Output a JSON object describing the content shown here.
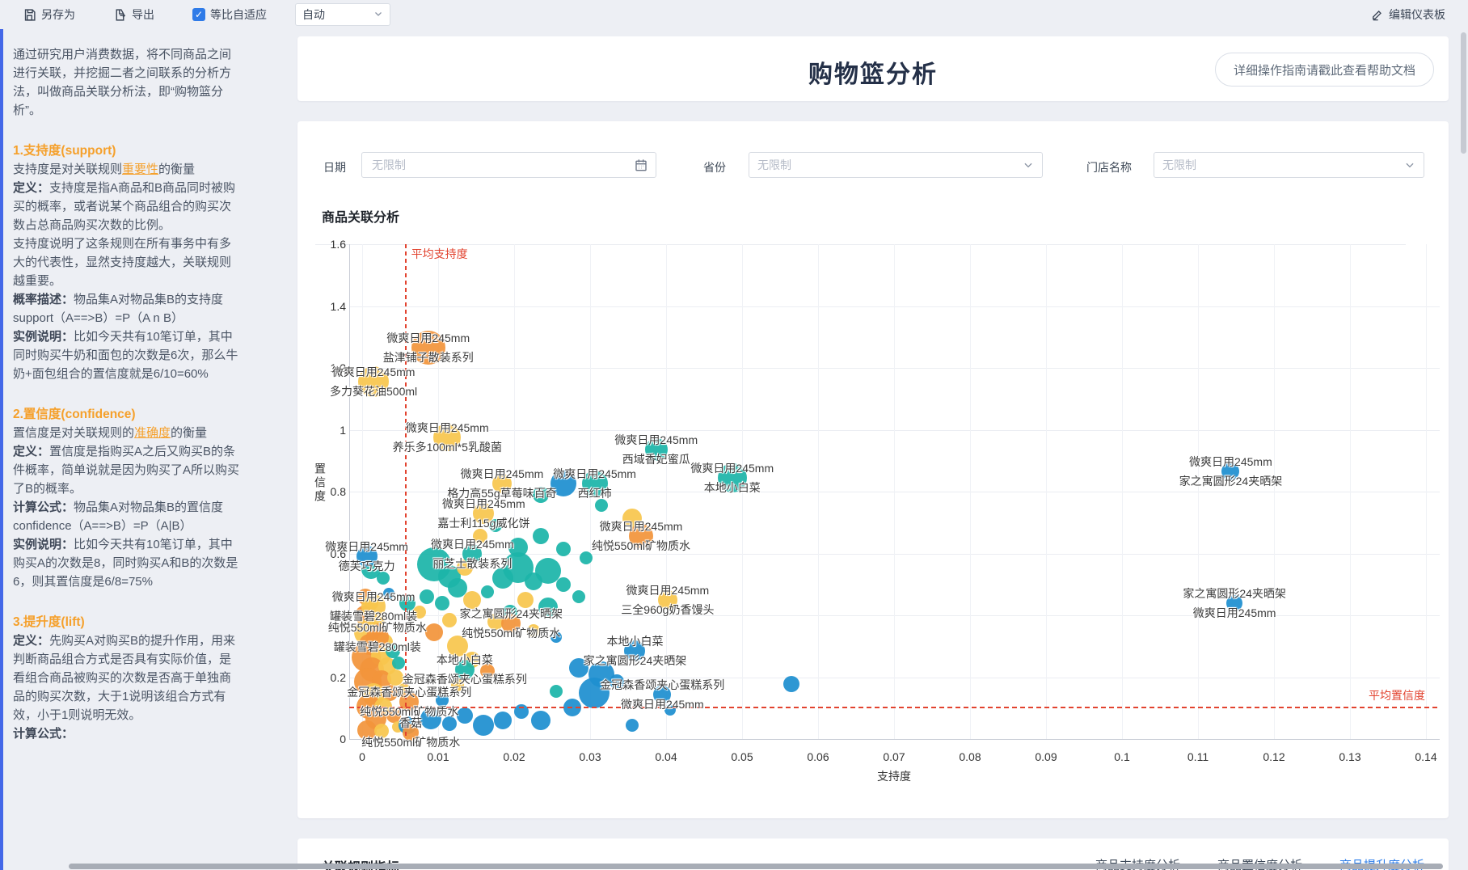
{
  "toolbar": {
    "save_label": "另存为",
    "export_label": "导出",
    "fit_label": "等比自适应",
    "fit_checked": true,
    "scale_value": "自动",
    "edit_label": "编辑仪表板",
    "accent_color": "#2f7be8"
  },
  "sidebar": {
    "blocks": [
      {
        "type": "p",
        "segs": [
          {
            "t": "通过研究用户消费数据，将不同商品之间进行关联，并挖掘二者之间联系的分析方法，叫做商品关联分析法，即“购物篮分析”。"
          }
        ]
      },
      {
        "type": "h",
        "segs": [
          {
            "t": "1.支持度(support)"
          }
        ]
      },
      {
        "type": "p",
        "segs": [
          {
            "t": "支持度是对关联规则"
          },
          {
            "t": "重要性",
            "s": "hl"
          },
          {
            "t": "的衡量"
          }
        ]
      },
      {
        "type": "p",
        "segs": [
          {
            "t": "定义：",
            "s": "b"
          },
          {
            "t": "支持度是指A商品和B商品同时被购买的概率，或者说某个商品组合的购买次数占总商品购买次数的比例。"
          }
        ]
      },
      {
        "type": "p",
        "segs": [
          {
            "t": "支持度说明了这条规则在所有事务中有多大的代表性，显然支持度越大，关联规则越重要。"
          }
        ]
      },
      {
        "type": "p",
        "segs": [
          {
            "t": "概率描述：",
            "s": "b"
          },
          {
            "t": "物品集A对物品集B的支持度support（A==>B）=P（A n B）"
          }
        ]
      },
      {
        "type": "p",
        "segs": [
          {
            "t": "实例说明：",
            "s": "b"
          },
          {
            "t": "比如今天共有10笔订单，其中同时购买牛奶和面包的次数是6次，那么牛奶+面包组合的置信度就是6/10=60%"
          }
        ]
      },
      {
        "type": "h",
        "segs": [
          {
            "t": "2.置信度(confidence)"
          }
        ]
      },
      {
        "type": "p",
        "segs": [
          {
            "t": "置信度是对关联规则的"
          },
          {
            "t": "准确度",
            "s": "hl"
          },
          {
            "t": "的衡量"
          }
        ]
      },
      {
        "type": "p",
        "segs": [
          {
            "t": "定义：",
            "s": "b"
          },
          {
            "t": "置信度是指购买A之后又购买B的条件概率，简单说就是因为购买了A所以购买了B的概率。"
          }
        ]
      },
      {
        "type": "p",
        "segs": [
          {
            "t": "计算公式：",
            "s": "b"
          },
          {
            "t": "物品集A对物品集B的置信度confidence（A==>B）=P（A|B）"
          }
        ]
      },
      {
        "type": "p",
        "segs": [
          {
            "t": "实例说明：",
            "s": "b"
          },
          {
            "t": "比如今天共有10笔订单，其中购买A的次数是8，同时购买A和B的次数是6，则其置信度是6/8=75%"
          }
        ]
      },
      {
        "type": "h",
        "segs": [
          {
            "t": "3.提升度(lift)"
          }
        ]
      },
      {
        "type": "p",
        "segs": [
          {
            "t": "定义：",
            "s": "b"
          },
          {
            "t": "先购买A对购买B的提升作用，用来判断商品组合方式是否具有实际价值，是看组合商品被购买的次数是否高于单独商品的购买次数，大于1说明该组合方式有效，小于1则说明无效。"
          }
        ]
      },
      {
        "type": "p",
        "segs": [
          {
            "t": "计算公式：",
            "s": "b"
          }
        ]
      }
    ]
  },
  "header": {
    "title": "购物篮分析",
    "help_button": "详细操作指南请戳此查看帮助文档"
  },
  "filters": {
    "date_label": "日期",
    "date_placeholder": "无限制",
    "province_label": "省份",
    "province_value": "无限制",
    "store_label": "门店名称",
    "store_value": "无限制"
  },
  "chart_data": {
    "type": "scatter",
    "title": "商品关联分析",
    "xlabel": "支持度",
    "ylabel": "置信度",
    "xlim": [
      0,
      0.14
    ],
    "ylim": [
      0,
      1.6
    ],
    "xtick_labels": [
      "0",
      "0.01",
      "0.02",
      "0.03",
      "0.04",
      "0.05",
      "0.06",
      "0.07",
      "0.08",
      "0.09",
      "0.1",
      "0.11",
      "0.12",
      "0.13",
      "0.14"
    ],
    "ytick_labels": [
      "0",
      "0.2",
      "0.4",
      "0.6",
      "0.8",
      "1",
      "1.2",
      "1.4",
      "1.6"
    ],
    "grid": true,
    "avg_support": {
      "value": 0.0056,
      "label": "平均支持度"
    },
    "avg_confidence": {
      "value": 0.105,
      "label": "平均置信度"
    },
    "colors": {
      "o": "#F2953B",
      "y": "#F8C64E",
      "t": "#1CB5A9",
      "b": "#1E8FD0"
    },
    "line_color": "#E2432F",
    "labeled_points": [
      {
        "x": 0.0087,
        "y": 1.265,
        "r": 21,
        "c": "o",
        "lines": [
          "微爽日用245mm",
          "盐津铺子散装系列"
        ]
      },
      {
        "x": 0.0015,
        "y": 1.155,
        "r": 19,
        "c": "y",
        "lines": [
          "微爽日用245mm",
          "多力葵花油500ml"
        ]
      },
      {
        "x": 0.0112,
        "y": 0.975,
        "r": 17,
        "c": "y",
        "lines": [
          "微爽日用245mm",
          "养乐多100ml*5乳酸菌"
        ]
      },
      {
        "x": 0.0387,
        "y": 0.935,
        "r": 14,
        "c": "t",
        "lines": [
          "微爽日用245mm",
          "西域香妃蜜瓜"
        ]
      },
      {
        "x": 0.0487,
        "y": 0.845,
        "r": 18,
        "c": "t",
        "lines": [
          "微爽日用245mm",
          "本地小白菜"
        ]
      },
      {
        "x": 0.0184,
        "y": 0.825,
        "r": 12,
        "c": "y",
        "lines": [
          "微爽日用245mm",
          "格力高55g草莓味百奇"
        ]
      },
      {
        "x": 0.0306,
        "y": 0.825,
        "r": 16,
        "c": "t",
        "lines": [
          "微爽日用245mm",
          "西红柿"
        ]
      },
      {
        "x": 0.016,
        "y": 0.73,
        "r": 13,
        "c": "y",
        "lines": [
          "微爽日用245mm",
          "嘉士利115g威化饼"
        ]
      },
      {
        "x": 0.0367,
        "y": 0.655,
        "r": 15,
        "c": "o",
        "lines": [
          "微爽日用245mm",
          "纯悦550ml矿物质水"
        ]
      },
      {
        "x": 0.0145,
        "y": 0.6,
        "r": 12,
        "c": "t",
        "lines": [
          "微爽日用245mm",
          "丽芝士散装系列"
        ]
      },
      {
        "x": 0.0006,
        "y": 0.59,
        "r": 13,
        "c": "b",
        "lines": [
          "微爽日用245mm",
          "德芙巧克力"
        ]
      },
      {
        "x": 0.0015,
        "y": 0.43,
        "r": 15,
        "c": "y",
        "lines": [
          "微爽日用245mm",
          "罐装雪碧280ml装"
        ]
      },
      {
        "x": 0.002,
        "y": 0.33,
        "r": 14,
        "c": "o",
        "lines": [
          "纯悦550ml矿物质水",
          "罐装雪碧280ml装"
        ]
      },
      {
        "x": 0.0196,
        "y": 0.375,
        "r": 12,
        "c": "o",
        "lines": [
          "家之寓圆形24夹晒架",
          "纯悦550ml矿物质水"
        ]
      },
      {
        "x": 0.0135,
        "y": 0.225,
        "r": 12,
        "c": "t",
        "lines": [
          "本地小白菜",
          "金冠森香颂夹心蛋糕系列"
        ]
      },
      {
        "x": 0.0062,
        "y": 0.12,
        "r": 12,
        "c": "o",
        "lines": [
          "金冠森香颂夹心蛋糕系列",
          "纯悦550ml矿物质水"
        ]
      },
      {
        "x": 0.0064,
        "y": 0.02,
        "r": 10,
        "c": "o",
        "lines": [
          "香菇",
          "纯悦550ml矿物质水"
        ]
      },
      {
        "x": 0.0402,
        "y": 0.45,
        "r": 12,
        "c": "y",
        "lines": [
          "微爽日用245mm",
          "三全960g奶香馒头"
        ]
      },
      {
        "x": 0.0359,
        "y": 0.285,
        "r": 13,
        "c": "b",
        "lines": [
          "本地小白菜",
          "家之寓圆形24夹晒架"
        ]
      },
      {
        "x": 0.0395,
        "y": 0.145,
        "r": 11,
        "c": "b",
        "lines": [
          "金冠森香颂夹心蛋糕系列",
          "微爽日用245mm"
        ]
      },
      {
        "x": 0.1143,
        "y": 0.865,
        "r": 11,
        "c": "b",
        "lines": [
          "微爽日用245mm",
          "家之寓圆形24夹晒架"
        ]
      },
      {
        "x": 0.1148,
        "y": 0.44,
        "r": 10,
        "c": "b",
        "lines": [
          "家之寓圆形24夹晒架",
          "微爽日用245mm"
        ]
      }
    ],
    "points": [
      [
        0.0004,
        0.46,
        10,
        "o"
      ],
      [
        0.0012,
        0.44,
        9,
        "y"
      ],
      [
        0.0003,
        0.4,
        12,
        "o"
      ],
      [
        0.0018,
        0.385,
        11,
        "y"
      ],
      [
        0.0006,
        0.345,
        16,
        "y"
      ],
      [
        0.0022,
        0.35,
        9,
        "o"
      ],
      [
        0.001,
        0.305,
        13,
        "o"
      ],
      [
        0.003,
        0.315,
        10,
        "y"
      ],
      [
        0.0005,
        0.265,
        18,
        "o"
      ],
      [
        0.0024,
        0.27,
        12,
        "y"
      ],
      [
        0.004,
        0.285,
        9,
        "t"
      ],
      [
        0.0013,
        0.225,
        15,
        "o"
      ],
      [
        0.0033,
        0.235,
        11,
        "y"
      ],
      [
        0.0048,
        0.245,
        8,
        "t"
      ],
      [
        0.0007,
        0.185,
        17,
        "o"
      ],
      [
        0.0026,
        0.19,
        12,
        "o"
      ],
      [
        0.0044,
        0.2,
        10,
        "y"
      ],
      [
        0.0015,
        0.145,
        14,
        "y"
      ],
      [
        0.0036,
        0.15,
        10,
        "o"
      ],
      [
        0.0055,
        0.16,
        8,
        "y"
      ],
      [
        0.0008,
        0.105,
        15,
        "o"
      ],
      [
        0.0028,
        0.105,
        11,
        "y"
      ],
      [
        0.0018,
        0.065,
        13,
        "o"
      ],
      [
        0.0042,
        0.075,
        9,
        "o"
      ],
      [
        0.0006,
        0.03,
        12,
        "o"
      ],
      [
        0.0025,
        0.025,
        9,
        "y"
      ],
      [
        0.0047,
        0.04,
        7,
        "y"
      ],
      [
        0.0035,
        0.47,
        7,
        "b"
      ],
      [
        0.0012,
        0.55,
        12,
        "t"
      ],
      [
        0.0028,
        0.52,
        8,
        "t"
      ],
      [
        0.006,
        0.44,
        10,
        "t"
      ],
      [
        0.0075,
        0.41,
        8,
        "y"
      ],
      [
        0.0085,
        0.46,
        9,
        "t"
      ],
      [
        0.0095,
        0.565,
        21,
        "t"
      ],
      [
        0.0115,
        0.525,
        14,
        "t"
      ],
      [
        0.0135,
        0.555,
        10,
        "y"
      ],
      [
        0.0125,
        0.49,
        12,
        "t"
      ],
      [
        0.0105,
        0.44,
        9,
        "t"
      ],
      [
        0.0145,
        0.45,
        11,
        "y"
      ],
      [
        0.0165,
        0.475,
        8,
        "t"
      ],
      [
        0.0185,
        0.52,
        13,
        "t"
      ],
      [
        0.0205,
        0.555,
        19,
        "t"
      ],
      [
        0.0225,
        0.51,
        11,
        "t"
      ],
      [
        0.0245,
        0.545,
        16,
        "t"
      ],
      [
        0.0265,
        0.5,
        9,
        "t"
      ],
      [
        0.0215,
        0.45,
        10,
        "y"
      ],
      [
        0.0245,
        0.425,
        12,
        "t"
      ],
      [
        0.0285,
        0.46,
        8,
        "t"
      ],
      [
        0.0195,
        0.41,
        9,
        "t"
      ],
      [
        0.0175,
        0.38,
        10,
        "y"
      ],
      [
        0.0225,
        0.35,
        8,
        "y"
      ],
      [
        0.0255,
        0.33,
        7,
        "b"
      ],
      [
        0.0205,
        0.62,
        12,
        "t"
      ],
      [
        0.0235,
        0.655,
        10,
        "t"
      ],
      [
        0.0265,
        0.615,
        9,
        "t"
      ],
      [
        0.0295,
        0.585,
        8,
        "t"
      ],
      [
        0.0155,
        0.655,
        9,
        "y"
      ],
      [
        0.0175,
        0.69,
        8,
        "t"
      ],
      [
        0.0265,
        0.825,
        16,
        "b"
      ],
      [
        0.0235,
        0.79,
        10,
        "t"
      ],
      [
        0.0355,
        0.715,
        12,
        "y"
      ],
      [
        0.0315,
        0.755,
        8,
        "t"
      ],
      [
        0.006,
        0.045,
        11,
        "b"
      ],
      [
        0.009,
        0.065,
        13,
        "b"
      ],
      [
        0.0115,
        0.05,
        9,
        "b"
      ],
      [
        0.0135,
        0.075,
        10,
        "b"
      ],
      [
        0.016,
        0.045,
        13,
        "b"
      ],
      [
        0.0185,
        0.06,
        11,
        "b"
      ],
      [
        0.021,
        0.09,
        9,
        "b"
      ],
      [
        0.0235,
        0.06,
        12,
        "b"
      ],
      [
        0.0105,
        0.125,
        8,
        "b"
      ],
      [
        0.0305,
        0.15,
        19,
        "b"
      ],
      [
        0.0315,
        0.21,
        16,
        "b"
      ],
      [
        0.0285,
        0.23,
        12,
        "b"
      ],
      [
        0.0277,
        0.103,
        11,
        "b"
      ],
      [
        0.0335,
        0.185,
        9,
        "b"
      ],
      [
        0.0255,
        0.155,
        8,
        "t"
      ],
      [
        0.0565,
        0.178,
        10,
        "b"
      ],
      [
        0.0355,
        0.045,
        8,
        "b"
      ],
      [
        0.0405,
        0.095,
        7,
        "b"
      ],
      [
        0.0125,
        0.3,
        13,
        "y"
      ],
      [
        0.0145,
        0.255,
        10,
        "y"
      ],
      [
        0.0165,
        0.22,
        9,
        "o"
      ],
      [
        0.0125,
        0.175,
        8,
        "y"
      ],
      [
        0.0095,
        0.345,
        11,
        "o"
      ],
      [
        0.0115,
        0.385,
        9,
        "y"
      ]
    ]
  },
  "bottom": {
    "title": "关联规则指标",
    "tabs": [
      {
        "label": "商品支持度分析",
        "active": false
      },
      {
        "label": "商品置信度分析",
        "active": false
      },
      {
        "label": "商品提升度分析",
        "active": true
      }
    ]
  }
}
